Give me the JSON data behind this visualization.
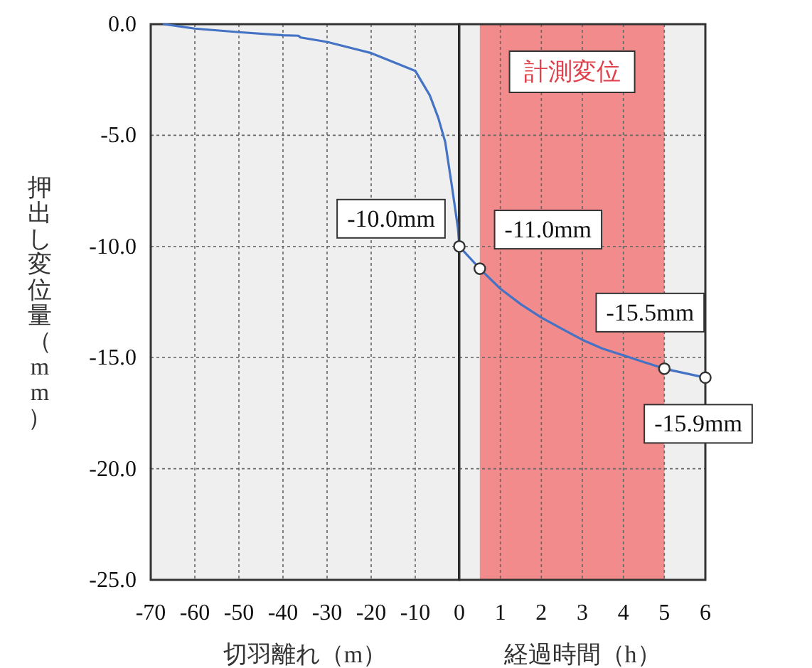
{
  "chart_data": [
    {
      "type": "line",
      "xlabel": "切羽離れ（m）",
      "ylabel": "押出し変位量（mm）",
      "xlim": [
        -70,
        0
      ],
      "xticks": [
        -70,
        -60,
        -50,
        -40,
        -30,
        -20,
        -10,
        0
      ],
      "ylim": [
        -25,
        0
      ],
      "yticks": [
        {
          "value": 0,
          "label": "0.0"
        },
        {
          "value": -5,
          "label": "-5.0"
        },
        {
          "value": -10,
          "label": "-10.0"
        },
        {
          "value": -15,
          "label": "-15.0"
        },
        {
          "value": -20,
          "label": "-20.0"
        },
        {
          "value": -25,
          "label": "-25.0"
        }
      ],
      "grid": true,
      "series": [
        {
          "color": "#4472c4",
          "x": [
            -67,
            -60,
            -50,
            -40,
            -36.5,
            -36,
            -30,
            -20,
            -10,
            -6.7,
            -4.8,
            -3.2,
            -1.6,
            -0.3,
            0
          ],
          "values": [
            0,
            -0.2,
            -0.36,
            -0.5,
            -0.52,
            -0.6,
            -0.8,
            -1.3,
            -2.1,
            -3.2,
            -4.2,
            -5.3,
            -7.4,
            -9.2,
            -10
          ]
        },
        {
          "type": "scatter",
          "color": "#ffffff",
          "x": [
            0
          ],
          "values": [
            -10
          ]
        }
      ],
      "annotations": [
        {
          "text": "-10.0mm",
          "x": 0,
          "y": -10
        }
      ]
    },
    {
      "type": "line",
      "xlabel": "経過時間（h）",
      "xlim": [
        0,
        6
      ],
      "xticks": [
        1,
        2,
        3,
        4,
        5,
        6
      ],
      "ylim": [
        -25,
        0
      ],
      "yticks": [
        0,
        -5,
        -10,
        -15,
        -20,
        -25
      ],
      "tick_labels": "x",
      "grid": true,
      "bands": [
        {
          "axis": "x",
          "from": 0.5,
          "to": 5,
          "label": "計測変位",
          "color": "#f28b8b"
        }
      ],
      "series": [
        {
          "color": "#4472c4",
          "x": [
            0,
            0.5,
            1,
            1.5,
            2,
            2.5,
            3,
            3.5,
            4,
            4.5,
            5,
            6
          ],
          "values": [
            -10,
            -11,
            -11.9,
            -12.6,
            -13.2,
            -13.7,
            -14.2,
            -14.6,
            -14.9,
            -15.2,
            -15.5,
            -15.9
          ]
        },
        {
          "type": "scatter",
          "color": "#ffffff",
          "x": [
            0.5,
            5,
            6
          ],
          "values": [
            -11,
            -15.5,
            -15.9
          ]
        }
      ],
      "annotations": [
        {
          "text": "-11.0mm",
          "x": 0.5,
          "y": -11
        },
        {
          "text": "-15.5mm",
          "x": 5,
          "y": -15.5
        },
        {
          "text": "-15.9mm",
          "x": 6,
          "y": -15.9
        }
      ]
    }
  ]
}
